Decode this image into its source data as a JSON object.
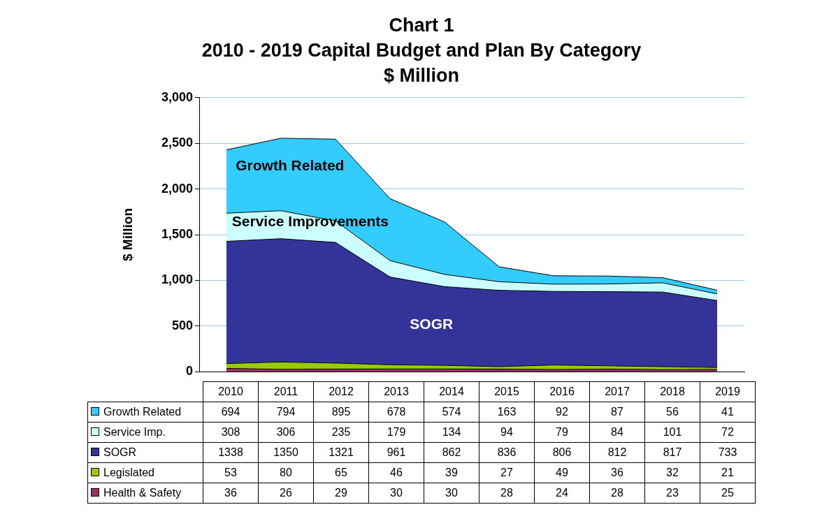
{
  "chart_data": {
    "type": "area",
    "stacked": true,
    "title": "Chart 1",
    "subtitle": "2010 - 2019 Capital Budget and Plan By Category",
    "ylabel": "$ Million",
    "categories": [
      "2010",
      "2011",
      "2012",
      "2013",
      "2014",
      "2015",
      "2016",
      "2017",
      "2018",
      "2019"
    ],
    "series": [
      {
        "name": "Health & Safety",
        "color": "#993366",
        "values": [
          36,
          26,
          29,
          30,
          30,
          28,
          24,
          28,
          23,
          25
        ]
      },
      {
        "name": "Legislated",
        "color": "#99cc00",
        "values": [
          53,
          80,
          65,
          46,
          39,
          27,
          49,
          36,
          32,
          21
        ]
      },
      {
        "name": "SOGR",
        "color": "#333399",
        "values": [
          1338,
          1350,
          1321,
          961,
          862,
          836,
          806,
          812,
          817,
          733
        ]
      },
      {
        "name": "Service Imp.",
        "color": "#ccffff",
        "values": [
          308,
          306,
          235,
          179,
          134,
          94,
          79,
          84,
          101,
          72
        ]
      },
      {
        "name": "Growth Related",
        "color": "#33ccff",
        "values": [
          694,
          794,
          895,
          678,
          574,
          163,
          92,
          87,
          56,
          41
        ]
      }
    ],
    "ylim": [
      0,
      3000
    ],
    "yticks": [
      {
        "value": 0,
        "label": "0"
      },
      {
        "value": 500,
        "label": "500"
      },
      {
        "value": 1000,
        "label": "1,000"
      },
      {
        "value": 1500,
        "label": "1,500"
      },
      {
        "value": 2000,
        "label": "2,000"
      },
      {
        "value": 2500,
        "label": "2,500"
      },
      {
        "value": 3000,
        "label": "3,000"
      }
    ],
    "grid": "y",
    "legend": "bottom",
    "data_labels": true,
    "annotations": [
      "$ Million",
      "Growth Related",
      "Service Improvements",
      "SOGR"
    ]
  }
}
